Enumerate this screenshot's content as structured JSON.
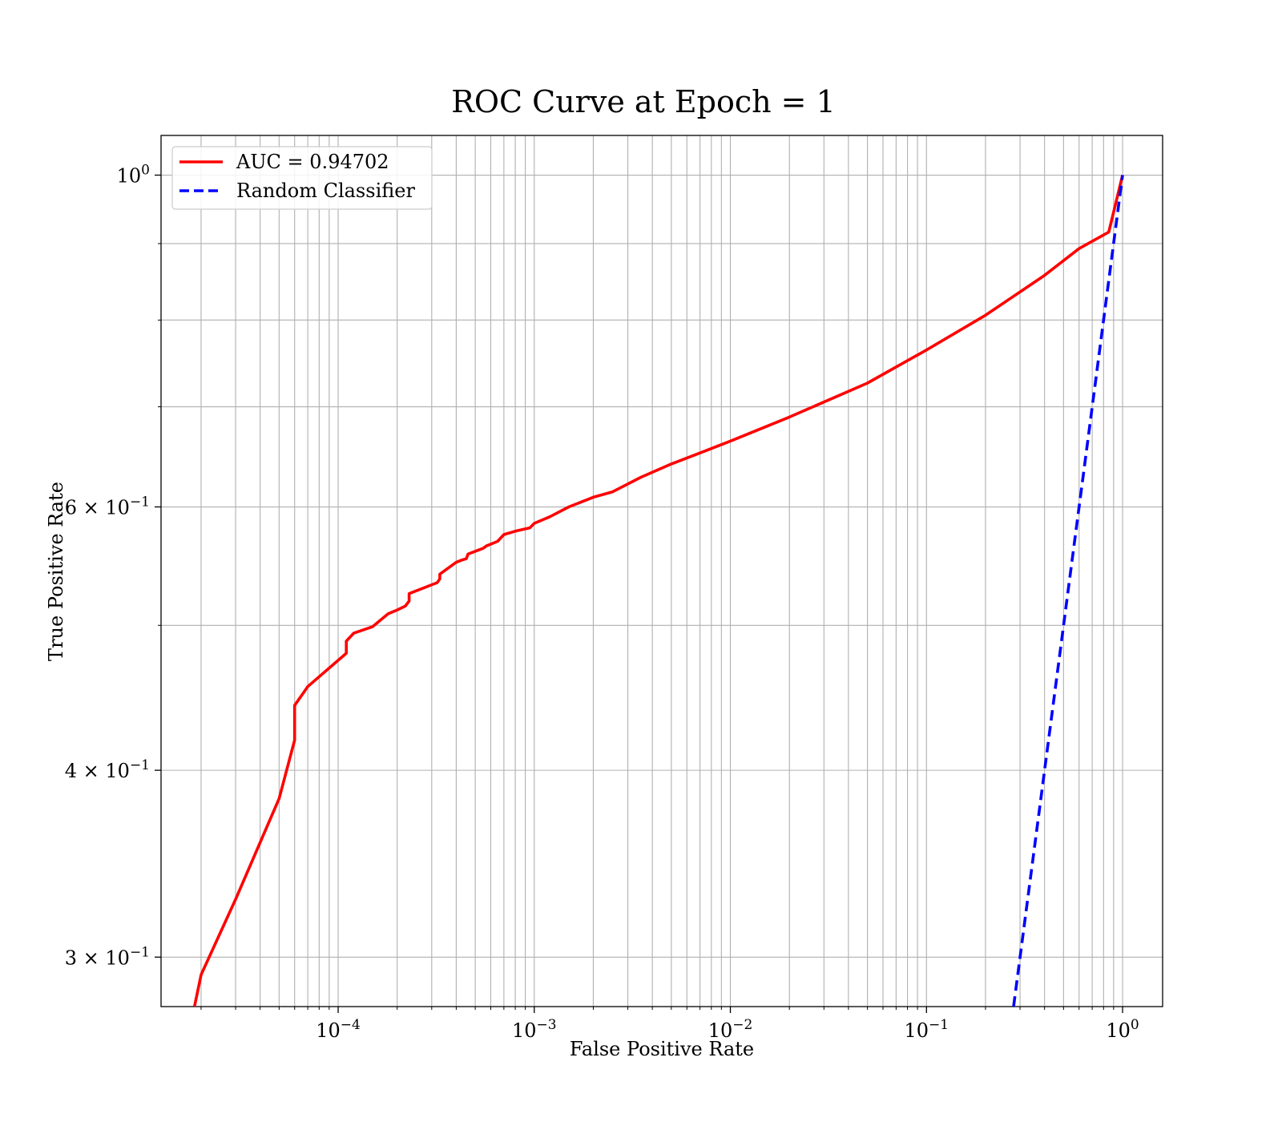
{
  "chart_data": {
    "type": "line",
    "title": "ROC Curve at Epoch = 1",
    "xlabel": "False Positive Rate",
    "ylabel": "True Positive Rate",
    "xscale": "log",
    "yscale": "log",
    "xlim": [
      1.25e-05,
      1.6
    ],
    "ylim": [
      0.278,
      1.063
    ],
    "grid": true,
    "grid_minor": true,
    "legend_position": "upper-left",
    "x_ticks": [
      {
        "value": 0.0001,
        "base": "10",
        "exp": "−4"
      },
      {
        "value": 0.001,
        "base": "10",
        "exp": "−3"
      },
      {
        "value": 0.01,
        "base": "10",
        "exp": "−2"
      },
      {
        "value": 0.1,
        "base": "10",
        "exp": "−1"
      },
      {
        "value": 1,
        "base": "10",
        "exp": "0"
      }
    ],
    "y_ticks": [
      {
        "value": 1.0,
        "base": "10",
        "exp": "0"
      },
      {
        "value": 0.6,
        "base": "6 × 10",
        "exp": "−1"
      },
      {
        "value": 0.4,
        "base": "4 × 10",
        "exp": "−1"
      },
      {
        "value": 0.3,
        "base": "3 × 10",
        "exp": "−1"
      }
    ],
    "series": [
      {
        "name": "AUC = 0.94702",
        "color": "#ff0000",
        "style": "solid",
        "points": [
          [
            1.85e-05,
            0.278
          ],
          [
            2e-05,
            0.292
          ],
          [
            3e-05,
            0.328
          ],
          [
            5e-05,
            0.383
          ],
          [
            6e-05,
            0.419
          ],
          [
            6e-05,
            0.442
          ],
          [
            7e-05,
            0.455
          ],
          [
            0.00011,
            0.479
          ],
          [
            0.00011,
            0.488
          ],
          [
            0.00012,
            0.494
          ],
          [
            0.00015,
            0.499
          ],
          [
            0.00018,
            0.509
          ],
          [
            0.0002,
            0.512
          ],
          [
            0.00022,
            0.515
          ],
          [
            0.00023,
            0.519
          ],
          [
            0.00023,
            0.525
          ],
          [
            0.00032,
            0.534
          ],
          [
            0.00033,
            0.537
          ],
          [
            0.00033,
            0.541
          ],
          [
            0.0004,
            0.551
          ],
          [
            0.00043,
            0.553
          ],
          [
            0.00045,
            0.554
          ],
          [
            0.00046,
            0.558
          ],
          [
            0.00055,
            0.563
          ],
          [
            0.00057,
            0.565
          ],
          [
            0.00065,
            0.569
          ],
          [
            0.0007,
            0.575
          ],
          [
            0.0008,
            0.578
          ],
          [
            0.00095,
            0.581
          ],
          [
            0.001,
            0.585
          ],
          [
            0.0012,
            0.591
          ],
          [
            0.0015,
            0.6
          ],
          [
            0.002,
            0.609
          ],
          [
            0.0025,
            0.614
          ],
          [
            0.0035,
            0.628
          ],
          [
            0.005,
            0.641
          ],
          [
            0.007,
            0.652
          ],
          [
            0.01,
            0.664
          ],
          [
            0.02,
            0.689
          ],
          [
            0.05,
            0.726
          ],
          [
            0.1,
            0.764
          ],
          [
            0.2,
            0.806
          ],
          [
            0.4,
            0.857
          ],
          [
            0.6,
            0.893
          ],
          [
            0.85,
            0.916
          ],
          [
            1.0,
            1.0
          ]
        ]
      },
      {
        "name": "Random Classifier",
        "color": "#0000ff",
        "style": "dashed",
        "points": [
          [
            0.278,
            0.278
          ],
          [
            0.35,
            0.35
          ],
          [
            0.45,
            0.45
          ],
          [
            0.55,
            0.55
          ],
          [
            0.65,
            0.65
          ],
          [
            0.8,
            0.8
          ],
          [
            1.0,
            1.0
          ]
        ]
      }
    ]
  }
}
